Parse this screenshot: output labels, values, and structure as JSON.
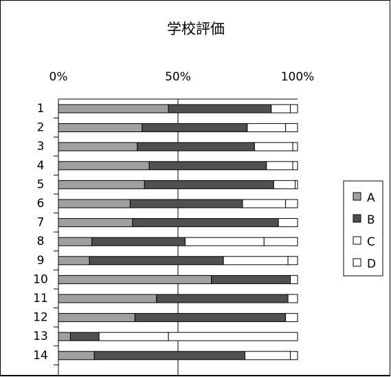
{
  "chart_data": {
    "type": "bar",
    "orientation": "horizontal",
    "stacked": "percent",
    "title": "学校評価",
    "xlabel": "",
    "ylabel": "",
    "x_tick_labels": [
      "0%",
      "50%",
      "100%"
    ],
    "xlim": [
      0,
      100
    ],
    "categories": [
      "1",
      "2",
      "3",
      "4",
      "5",
      "6",
      "7",
      "8",
      "9",
      "10",
      "11",
      "12",
      "13",
      "14"
    ],
    "series": [
      {
        "name": "A",
        "color": "#a0a0a0",
        "values": [
          46,
          35,
          33,
          38,
          36,
          30,
          31,
          14,
          13,
          64,
          41,
          32,
          5,
          15
        ]
      },
      {
        "name": "B",
        "color": "#505050",
        "values": [
          43,
          44,
          49,
          49,
          54,
          47,
          61,
          39,
          56,
          33,
          55,
          63,
          12,
          63
        ]
      },
      {
        "name": "C",
        "color": "#ffffff",
        "values": [
          8,
          16,
          16,
          11,
          9,
          18,
          8,
          33,
          27,
          3,
          4,
          5,
          29,
          19
        ]
      },
      {
        "name": "D",
        "color": "#ffffff",
        "values": [
          3,
          5,
          2,
          2,
          1,
          5,
          0,
          14,
          4,
          0,
          0,
          0,
          54,
          3
        ]
      }
    ],
    "grid": false,
    "legend_position": "right"
  }
}
